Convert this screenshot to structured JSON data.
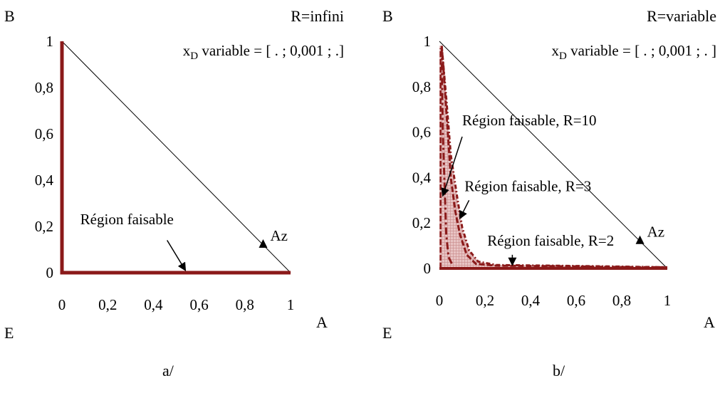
{
  "captions": {
    "left": "a/",
    "right": "b/"
  },
  "colors": {
    "curve": "#8b1a1a",
    "fill": "#c98a8a",
    "line": "#000000"
  },
  "chart_data": [
    {
      "type": "line",
      "subtitle": "R=infini",
      "xd_text": {
        "x": "x",
        "sub": "D",
        "rest": " variable = [ . ;  0,001 ; .]"
      },
      "corner_labels": {
        "top": "B",
        "right": "A",
        "bottom_left": "E"
      },
      "xlim": [
        0,
        1
      ],
      "ylim": [
        0,
        1
      ],
      "xticks": [
        "0",
        "0,2",
        "0,4",
        "0,6",
        "0,8",
        "1"
      ],
      "yticks": [
        "0",
        "0,2",
        "0,4",
        "0,6",
        "0,8",
        "1"
      ],
      "diagonal": [
        [
          0,
          1
        ],
        [
          1,
          0
        ]
      ],
      "series": [
        {
          "name": "Région faisable",
          "points": [
            [
              0,
              1
            ],
            [
              0,
              0
            ],
            [
              1,
              0
            ]
          ]
        }
      ],
      "points": [
        {
          "label": "Az",
          "x": 0.88,
          "y": 0.12
        }
      ],
      "annotations": [
        {
          "text": "Région faisable",
          "text_at": [
            0.08,
            0.21
          ],
          "arrow_from": [
            0.46,
            0.14
          ],
          "arrow_to": [
            0.54,
            0.01
          ]
        }
      ]
    },
    {
      "type": "area",
      "subtitle": "R=variable",
      "xd_text": {
        "x": "x",
        "sub": "D",
        "rest": " variable = [ . ;  0,001 ; . ]"
      },
      "corner_labels": {
        "top": "B",
        "right": "A",
        "bottom_left": "E"
      },
      "xlim": [
        0,
        1
      ],
      "ylim": [
        0,
        1
      ],
      "xticks": [
        "0",
        "0,2",
        "0,4",
        "0,6",
        "0,8",
        "1"
      ],
      "yticks": [
        "0",
        "0,2",
        "0,4",
        "0,6",
        "0,8",
        "1"
      ],
      "diagonal": [
        [
          0,
          1
        ],
        [
          1,
          0
        ]
      ],
      "series": [
        {
          "name": "Région faisable, R=10",
          "points": [
            [
              0.01,
              0.97
            ],
            [
              0.012,
              0.8
            ],
            [
              0.015,
              0.6
            ],
            [
              0.02,
              0.45
            ],
            [
              0.025,
              0.3
            ],
            [
              0.03,
              0.15
            ],
            [
              0.04,
              0.05
            ],
            [
              0.06,
              0.01
            ]
          ]
        },
        {
          "name": "Région faisable, R=3",
          "points": [
            [
              0.01,
              0.98
            ],
            [
              0.02,
              0.85
            ],
            [
              0.03,
              0.7
            ],
            [
              0.04,
              0.55
            ],
            [
              0.05,
              0.4
            ],
            [
              0.07,
              0.25
            ],
            [
              0.09,
              0.15
            ],
            [
              0.12,
              0.06
            ],
            [
              0.16,
              0.02
            ],
            [
              0.25,
              0.012
            ],
            [
              0.5,
              0.01
            ],
            [
              0.8,
              0.006
            ],
            [
              1.0,
              0.005
            ]
          ]
        },
        {
          "name": "Région faisable, R=2",
          "points": [
            [
              0.01,
              0.98
            ],
            [
              0.03,
              0.75
            ],
            [
              0.05,
              0.5
            ],
            [
              0.08,
              0.3
            ],
            [
              0.1,
              0.18
            ],
            [
              0.13,
              0.08
            ],
            [
              0.17,
              0.03
            ],
            [
              0.25,
              0.015
            ],
            [
              0.5,
              0.012
            ],
            [
              0.8,
              0.008
            ],
            [
              1.0,
              0.005
            ]
          ]
        }
      ],
      "points": [
        {
          "label": "Az",
          "x": 0.88,
          "y": 0.12
        }
      ],
      "annotations": [
        {
          "text": "Région faisable, R=10",
          "text_at": [
            0.1,
            0.63
          ],
          "arrow_from": [
            0.1,
            0.58
          ],
          "arrow_to": [
            0.015,
            0.32
          ]
        },
        {
          "text": "Région faisable, R=3",
          "text_at": [
            0.11,
            0.34
          ],
          "arrow_from": [
            0.13,
            0.3
          ],
          "arrow_to": [
            0.09,
            0.22
          ]
        },
        {
          "text": "Région faisable, R=2",
          "text_at": [
            0.21,
            0.1
          ],
          "arrow_from": [
            0.32,
            0.06
          ],
          "arrow_to": [
            0.32,
            0.015
          ]
        }
      ]
    }
  ]
}
